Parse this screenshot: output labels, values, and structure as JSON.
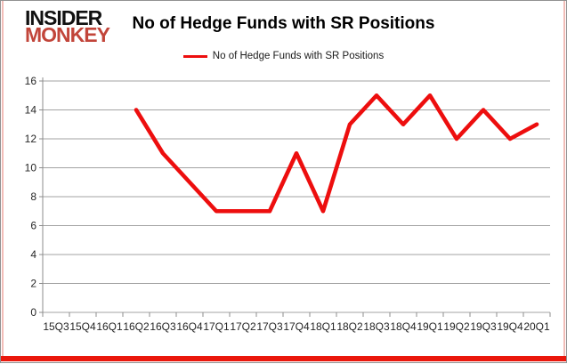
{
  "logo": {
    "line1": "INSIDER",
    "line2": "MONKEY"
  },
  "title": "No of Hedge Funds with SR Positions",
  "legend": {
    "label": "No of Hedge Funds with SR Positions"
  },
  "colors": {
    "series_line": "#ED0E0E",
    "logo_black": "#111111",
    "logo_red": "#C2453A",
    "gridline": "#A3A3A3",
    "axis": "#8C8C8C",
    "tick_label": "#262626",
    "frame_border": "#919191",
    "frame_accent_red": "#EA170C",
    "frame_accent_pink": "#F2BDB8"
  },
  "chart_data": {
    "type": "line",
    "title": "No of Hedge Funds with SR Positions",
    "categories": [
      "15Q3",
      "15Q4",
      "16Q1",
      "16Q2",
      "16Q3",
      "16Q4",
      "17Q1",
      "17Q2",
      "17Q3",
      "17Q4",
      "18Q1",
      "18Q2",
      "18Q3",
      "18Q4",
      "19Q1",
      "19Q2",
      "19Q3",
      "19Q4",
      "20Q1"
    ],
    "series": [
      {
        "name": "No of Hedge Funds with SR Positions",
        "color": "#ED0E0E",
        "values": [
          null,
          null,
          null,
          14,
          11,
          9,
          7,
          7,
          7,
          11,
          7,
          13,
          15,
          13,
          15,
          12,
          14,
          12,
          13
        ]
      }
    ],
    "ylim": [
      0,
      16
    ],
    "ytick_step": 2,
    "xlabel": "",
    "ylabel": "",
    "grid": true,
    "legend_position": "top-center"
  }
}
